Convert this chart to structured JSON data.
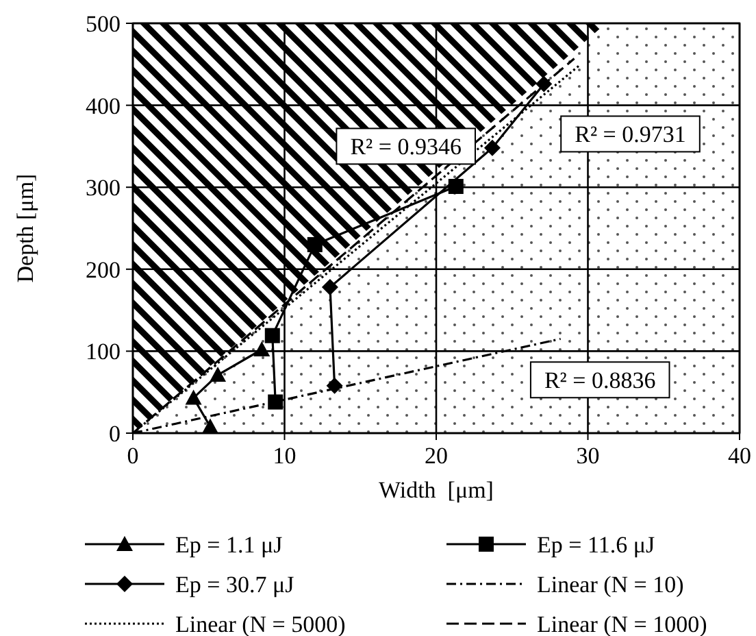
{
  "chart_data": {
    "type": "line",
    "xlabel": "Width  [μm]",
    "ylabel": "Depth [μm]",
    "xlim": [
      0,
      40
    ],
    "xticks": [
      0,
      10,
      20,
      30,
      40
    ],
    "ylim": [
      0,
      500
    ],
    "yticks": [
      0,
      100,
      200,
      300,
      400,
      500
    ],
    "grid": true,
    "legend": "bottom",
    "series": [
      {
        "type": "area",
        "color": "#555555",
        "x": [
          0,
          31.2,
          40
        ],
        "values": [
          0,
          500,
          500
        ]
      },
      {
        "name": "Ep = 1.1 μJ",
        "color": "#000000",
        "marker": "triangle",
        "line_style": "solid",
        "x": [
          5.1,
          4.0,
          5.6,
          8.5
        ],
        "values": [
          8,
          43,
          71,
          102
        ]
      },
      {
        "name": "Ep = 11.6 μJ",
        "color": "#000000",
        "marker": "square",
        "line_style": "solid",
        "x": [
          9.4,
          9.2,
          12.0,
          21.3
        ],
        "values": [
          38,
          119,
          230,
          301
        ]
      },
      {
        "name": "Ep = 30.7 μJ",
        "color": "#000000",
        "marker": "diamond",
        "line_style": "solid",
        "x": [
          13.3,
          13.0,
          23.7,
          27.1
        ],
        "values": [
          58,
          178,
          348,
          426
        ]
      },
      {
        "name": "Linear (N = 10)",
        "color": "#000000",
        "marker": "none",
        "line_style": "dashdot",
        "x": [
          0,
          28.2
        ],
        "values": [
          0,
          115
        ]
      },
      {
        "name": "Linear (N = 5000)",
        "color": "#000000",
        "marker": "none",
        "line_style": "dotted",
        "x": [
          0,
          29.4
        ],
        "values": [
          0,
          448
        ]
      },
      {
        "name": "Linear (N = 1000)",
        "color": "#000000",
        "marker": "none",
        "line_style": "dashed",
        "x": [
          0,
          29.1
        ],
        "values": [
          0,
          457
        ]
      }
    ],
    "annotations": [
      "R² = 0.9346",
      "R² = 0.9731",
      "R² = 0.8836"
    ]
  }
}
